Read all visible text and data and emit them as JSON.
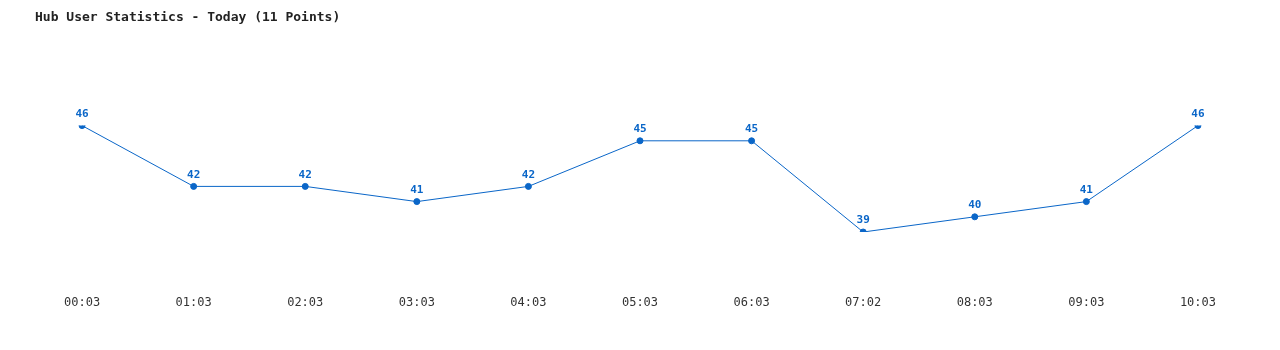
{
  "chart_data": {
    "type": "line",
    "title": "Hub User Statistics - Today (11 Points)",
    "categories": [
      "00:03",
      "01:03",
      "02:03",
      "03:03",
      "04:03",
      "05:03",
      "06:03",
      "07:02",
      "08:03",
      "09:03",
      "10:03"
    ],
    "series": [
      {
        "color": "#0a66c8",
        "values": [
          46,
          42,
          42,
          41,
          42,
          45,
          45,
          39,
          40,
          41,
          46
        ]
      }
    ],
    "data_labels": true,
    "marker": "circle",
    "line_style": "solid",
    "grid": false,
    "legend": false
  }
}
